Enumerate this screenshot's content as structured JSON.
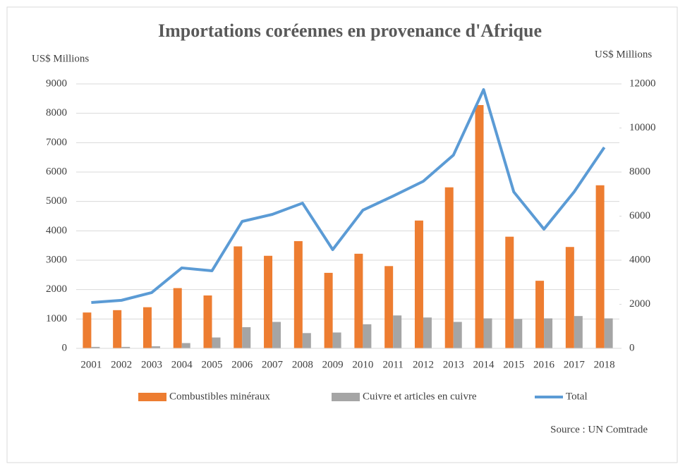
{
  "chart_data": {
    "type": "bar",
    "title": "Importations coréennes en provenance d'Afrique",
    "y_label": "US$ Millions",
    "y2_label": "US$ Millions",
    "source": "Source : UN Comtrade",
    "categories": [
      "2001",
      "2002",
      "2003",
      "2004",
      "2005",
      "2006",
      "2007",
      "2008",
      "2009",
      "2010",
      "2011",
      "2012",
      "2013",
      "2014",
      "2015",
      "2016",
      "2017",
      "2018"
    ],
    "series": [
      {
        "name": "Combustibles minéraux",
        "color": "#ED7D31",
        "type": "bar",
        "values": [
          1220,
          1300,
          1400,
          2050,
          1800,
          3470,
          3150,
          3650,
          2570,
          3220,
          2800,
          4350,
          5480,
          8280,
          3800,
          2300,
          3450,
          5550
        ]
      },
      {
        "name": "Cuivre et articles en cuivre",
        "color": "#A5A5A5",
        "type": "bar",
        "values": [
          50,
          50,
          70,
          180,
          370,
          720,
          900,
          520,
          540,
          820,
          1120,
          1050,
          900,
          1020,
          1000,
          1020,
          1100,
          1020
        ]
      },
      {
        "name": "Total",
        "color": "#5B9BD5",
        "type": "line",
        "axis": "y2",
        "values": [
          2080,
          2180,
          2530,
          3650,
          3520,
          5760,
          6080,
          6590,
          4480,
          6270,
          6910,
          7580,
          8770,
          11740,
          7100,
          5410,
          7100,
          9120
        ]
      }
    ],
    "ylim": [
      0,
      9000
    ],
    "yticks": [
      0,
      1000,
      2000,
      3000,
      4000,
      5000,
      6000,
      7000,
      8000,
      9000
    ],
    "y2lim": [
      0,
      12000
    ],
    "y2ticks": [
      0,
      2000,
      4000,
      6000,
      8000,
      10000,
      12000
    ],
    "grid": true,
    "legend": "bottom"
  }
}
